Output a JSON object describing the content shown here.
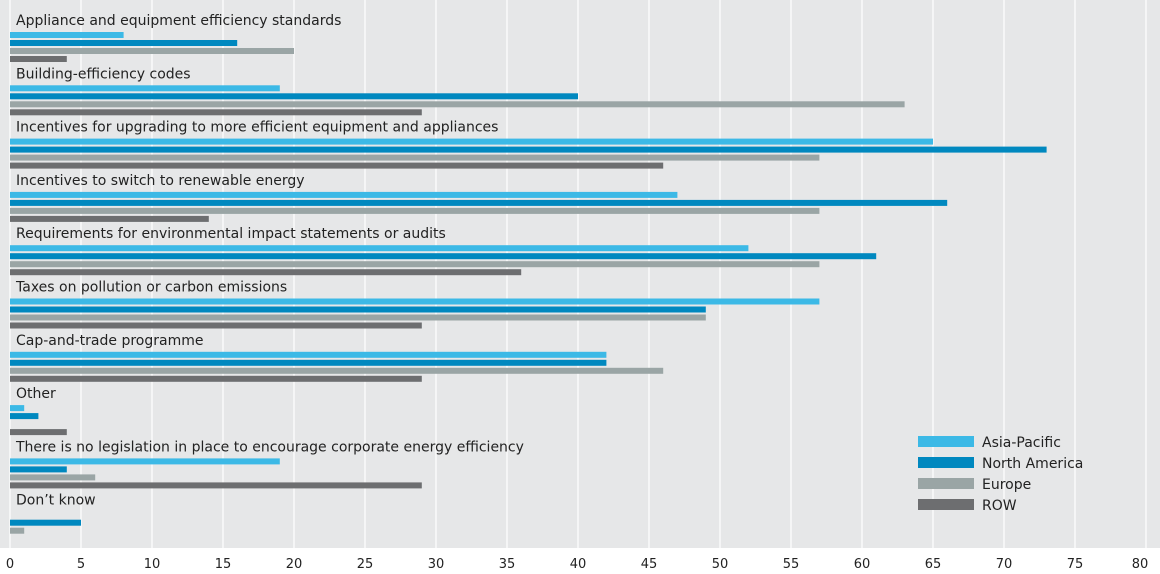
{
  "chart_data": {
    "type": "bar",
    "orientation": "horizontal",
    "categories": [
      "Appliance and equipment efficiency standards",
      "Building-efficiency codes",
      "Incentives for upgrading to more efficient equipment and appliances",
      "Incentives to switch to renewable energy",
      "Requirements for environmental impact statements or audits",
      "Taxes on pollution or carbon emissions",
      "Cap-and-trade programme",
      "Other",
      "There is no legislation in place to encourage corporate energy efficiency",
      "Don’t know"
    ],
    "series": [
      {
        "name": "Asia-Pacific",
        "color": "#3cb9e6",
        "values": [
          8,
          19,
          65,
          47,
          52,
          57,
          42,
          1,
          19,
          0
        ]
      },
      {
        "name": "North America",
        "color": "#0088bf",
        "values": [
          16,
          40,
          73,
          66,
          61,
          49,
          42,
          2,
          4,
          5
        ]
      },
      {
        "name": "Europe",
        "color": "#9aa5a5",
        "values": [
          20,
          63,
          57,
          57,
          57,
          49,
          46,
          0,
          6,
          1
        ]
      },
      {
        "name": "ROW",
        "color": "#6d6e70",
        "values": [
          4,
          29,
          46,
          14,
          36,
          29,
          29,
          4,
          29,
          0
        ]
      }
    ],
    "xlim": [
      0,
      80
    ],
    "xticks": [
      "0",
      "5",
      "10",
      "15",
      "20",
      "25",
      "30",
      "35",
      "40",
      "45",
      "50",
      "55",
      "60",
      "65",
      "70",
      "75",
      "80"
    ],
    "grid": true,
    "legend_position": "bottom-right",
    "title": "",
    "xlabel": "",
    "ylabel": ""
  },
  "colors": {
    "background": "#e6e7e8",
    "gridline": "#ffffff"
  }
}
